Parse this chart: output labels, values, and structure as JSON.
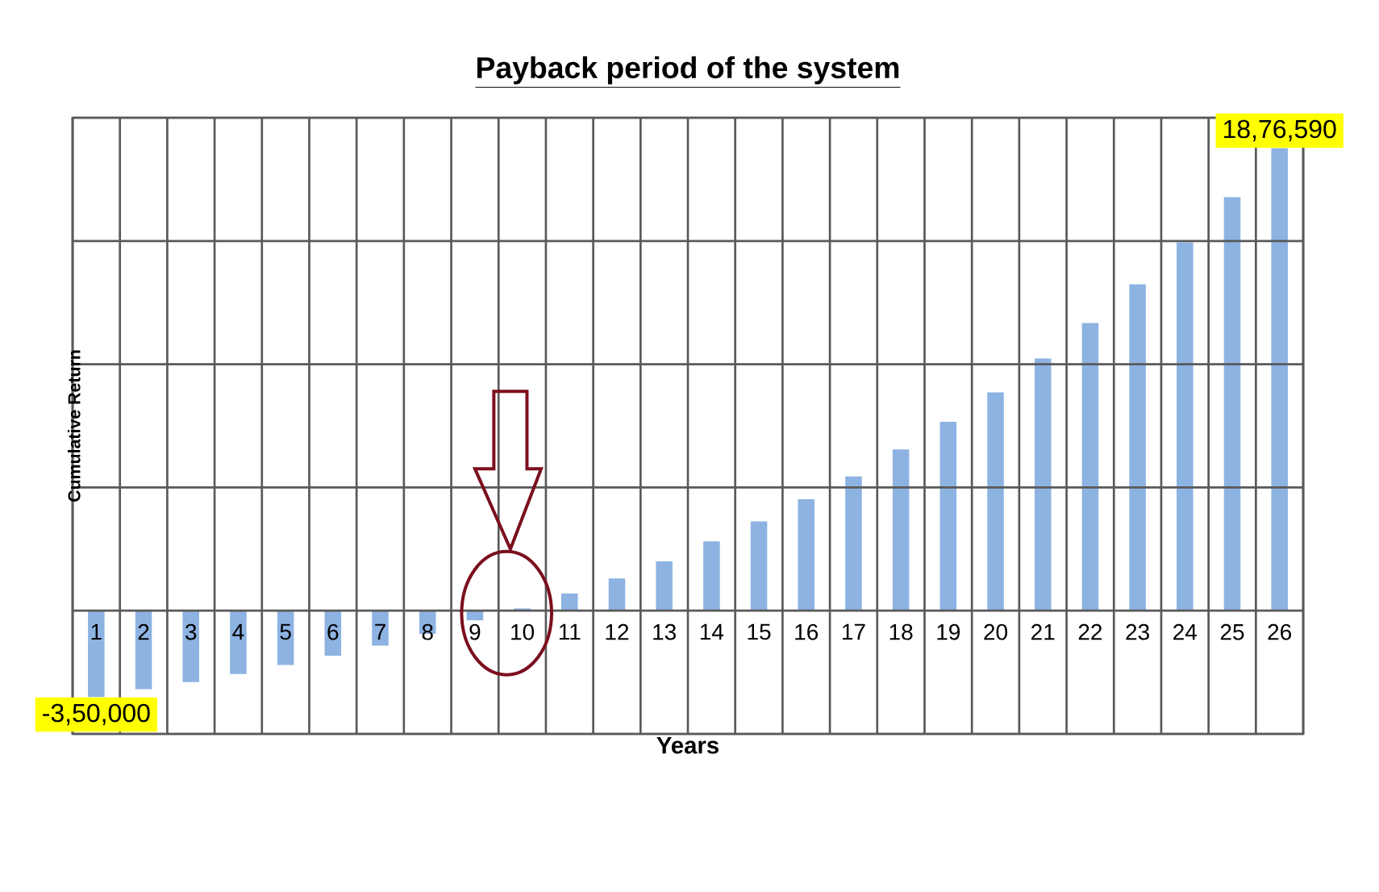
{
  "chart_data": {
    "type": "bar",
    "title": "Payback period of the system",
    "xlabel": "Years",
    "ylabel": "Cumulative Return",
    "categories": [
      "1",
      "2",
      "3",
      "4",
      "5",
      "6",
      "7",
      "8",
      "9",
      "10",
      "11",
      "12",
      "13",
      "14",
      "15",
      "16",
      "17",
      "18",
      "19",
      "20",
      "21",
      "22",
      "23",
      "24",
      "25",
      "26"
    ],
    "values": [
      -350000,
      -318000,
      -290000,
      -257000,
      -220000,
      -183000,
      -142000,
      -94000,
      -39000,
      9000,
      70000,
      131000,
      200000,
      281000,
      362000,
      452000,
      545000,
      654000,
      766000,
      886000,
      1023000,
      1167000,
      1324000,
      1494000,
      1678000,
      1876590
    ],
    "value_labels": [
      "-3,50,000",
      null,
      null,
      null,
      null,
      null,
      null,
      null,
      null,
      null,
      null,
      null,
      null,
      null,
      null,
      null,
      null,
      null,
      null,
      null,
      null,
      null,
      null,
      null,
      null,
      "18,76,590"
    ],
    "color": "#8db3e2",
    "ylim": [
      -500000,
      2000000
    ],
    "yticks": [
      {
        "value": -500000,
        "label": null
      },
      {
        "value": 0,
        "label": null
      },
      {
        "value": 500000,
        "label": null
      },
      {
        "value": 1000000,
        "label": null
      },
      {
        "value": 1500000,
        "label": null
      },
      {
        "value": 2000000,
        "label": null
      }
    ],
    "grid": true
  }
}
